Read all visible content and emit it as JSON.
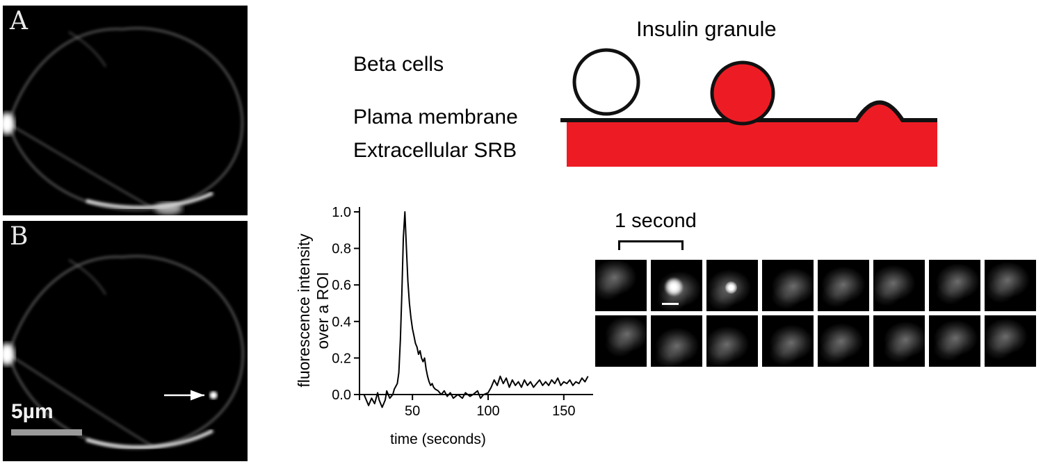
{
  "figure": {
    "panels": {
      "a": {
        "label": "A"
      },
      "b": {
        "label": "B",
        "scale_bar_label": "5µm"
      }
    },
    "schematic": {
      "title": "Insulin granule",
      "label_beta": "Beta cells",
      "label_membrane": "Plama membrane",
      "label_srb": "Extracellular SRB",
      "red": "#ed1c24"
    },
    "sequence": {
      "label": "1 second",
      "rows": 2,
      "cols": 8,
      "flash_frame": 1,
      "dim_flash_frame": 2
    }
  },
  "chart_data": {
    "type": "line",
    "title": "",
    "xlabel": "time (seconds)",
    "ylabel": "fluorescence intensity over a ROI",
    "ylabel_lines": [
      "fluorescence intensity",
      "over a ROI"
    ],
    "xlim": [
      15,
      168
    ],
    "ylim": [
      -0.08,
      1.0
    ],
    "xticks": [
      50,
      100,
      150
    ],
    "yticks": [
      0.0,
      0.2,
      0.4,
      0.6,
      0.8,
      1.0
    ],
    "grid": false,
    "legend": false,
    "points": [
      [
        18,
        0.0
      ],
      [
        20,
        -0.04
      ],
      [
        21,
        -0.06
      ],
      [
        23,
        -0.02
      ],
      [
        25,
        -0.05
      ],
      [
        27,
        0.01
      ],
      [
        28,
        -0.03
      ],
      [
        30,
        -0.07
      ],
      [
        32,
        -0.03
      ],
      [
        33,
        0.02
      ],
      [
        35,
        -0.02
      ],
      [
        37,
        0.0
      ],
      [
        38,
        0.03
      ],
      [
        40,
        0.06
      ],
      [
        41,
        0.12
      ],
      [
        42,
        0.3
      ],
      [
        43,
        0.55
      ],
      [
        44,
        0.86
      ],
      [
        45,
        1.0
      ],
      [
        46,
        0.8
      ],
      [
        47,
        0.62
      ],
      [
        48,
        0.5
      ],
      [
        49,
        0.42
      ],
      [
        50,
        0.36
      ],
      [
        51,
        0.32
      ],
      [
        52,
        0.28
      ],
      [
        53,
        0.26
      ],
      [
        54,
        0.22
      ],
      [
        55,
        0.24
      ],
      [
        56,
        0.2
      ],
      [
        57,
        0.18
      ],
      [
        58,
        0.2
      ],
      [
        59,
        0.14
      ],
      [
        60,
        0.1
      ],
      [
        61,
        0.07
      ],
      [
        62,
        0.05
      ],
      [
        63,
        0.06
      ],
      [
        64,
        0.04
      ],
      [
        65,
        0.03
      ],
      [
        67,
        0.02
      ],
      [
        69,
        0.0
      ],
      [
        71,
        0.02
      ],
      [
        73,
        -0.01
      ],
      [
        75,
        0.01
      ],
      [
        77,
        -0.02
      ],
      [
        80,
        0.0
      ],
      [
        83,
        -0.02
      ],
      [
        85,
        0.01
      ],
      [
        88,
        -0.01
      ],
      [
        90,
        0.0
      ],
      [
        93,
        0.02
      ],
      [
        95,
        -0.02
      ],
      [
        97,
        0.0
      ],
      [
        100,
        0.01
      ],
      [
        102,
        0.04
      ],
      [
        104,
        0.08
      ],
      [
        106,
        0.05
      ],
      [
        108,
        0.1
      ],
      [
        110,
        0.06
      ],
      [
        112,
        0.09
      ],
      [
        114,
        0.04
      ],
      [
        116,
        0.08
      ],
      [
        118,
        0.05
      ],
      [
        120,
        0.07
      ],
      [
        122,
        0.04
      ],
      [
        124,
        0.08
      ],
      [
        126,
        0.05
      ],
      [
        128,
        0.07
      ],
      [
        130,
        0.04
      ],
      [
        132,
        0.06
      ],
      [
        134,
        0.08
      ],
      [
        136,
        0.05
      ],
      [
        138,
        0.07
      ],
      [
        140,
        0.05
      ],
      [
        142,
        0.08
      ],
      [
        144,
        0.06
      ],
      [
        146,
        0.09
      ],
      [
        148,
        0.05
      ],
      [
        150,
        0.07
      ],
      [
        152,
        0.06
      ],
      [
        154,
        0.08
      ],
      [
        156,
        0.05
      ],
      [
        158,
        0.07
      ],
      [
        160,
        0.06
      ],
      [
        162,
        0.09
      ],
      [
        164,
        0.07
      ],
      [
        166,
        0.1
      ]
    ]
  }
}
